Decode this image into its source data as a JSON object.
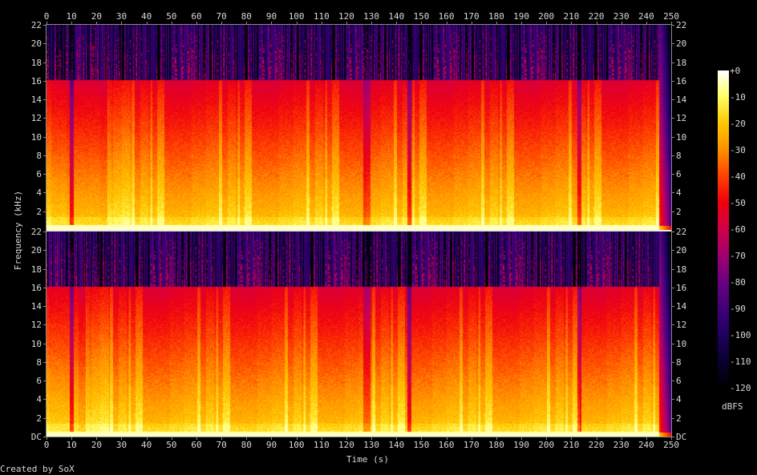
{
  "chart_data": {
    "type": "heatmap",
    "subtype": "spectrogram",
    "channels": 2,
    "xlabel": "Time (s)",
    "ylabel": "Frequency (kHz)",
    "xlim": [
      0,
      250
    ],
    "ylim": [
      0,
      22
    ],
    "x_ticks": [
      "0",
      "10",
      "20",
      "30",
      "40",
      "50",
      "60",
      "70",
      "80",
      "90",
      "100",
      "110",
      "120",
      "130",
      "140",
      "150",
      "160",
      "170",
      "180",
      "190",
      "200",
      "210",
      "220",
      "230",
      "240",
      "250"
    ],
    "y_ticks_top": [
      "2",
      "4",
      "6",
      "8",
      "10",
      "12",
      "14",
      "16",
      "18",
      "20",
      "22"
    ],
    "y_ticks_bottom": [
      "DC",
      "2",
      "4",
      "6",
      "8",
      "10",
      "12",
      "14",
      "16",
      "18",
      "20",
      "22"
    ],
    "y_tick_values": [
      0,
      2,
      4,
      6,
      8,
      10,
      12,
      14,
      16,
      18,
      20,
      22
    ],
    "lowpass_cutoff_khz": 16,
    "audio_end_s": 245,
    "quiet_times_s": [
      10,
      128,
      145,
      213
    ],
    "colorbar": {
      "label": "dBFS",
      "range": [
        -120,
        0
      ],
      "ticks": [
        "+0",
        "-10",
        "-20",
        "-30",
        "-40",
        "-50",
        "-60",
        "-70",
        "-80",
        "-90",
        "-100",
        "-110",
        "-120"
      ],
      "palette": [
        "#000000",
        "#0a0030",
        "#200060",
        "#40007a",
        "#6a0080",
        "#a00070",
        "#d0004a",
        "#f00010",
        "#ff4000",
        "#ff9000",
        "#ffc800",
        "#ffff60",
        "#ffffff"
      ]
    }
  },
  "footer": {
    "credit": "Created by SoX"
  }
}
